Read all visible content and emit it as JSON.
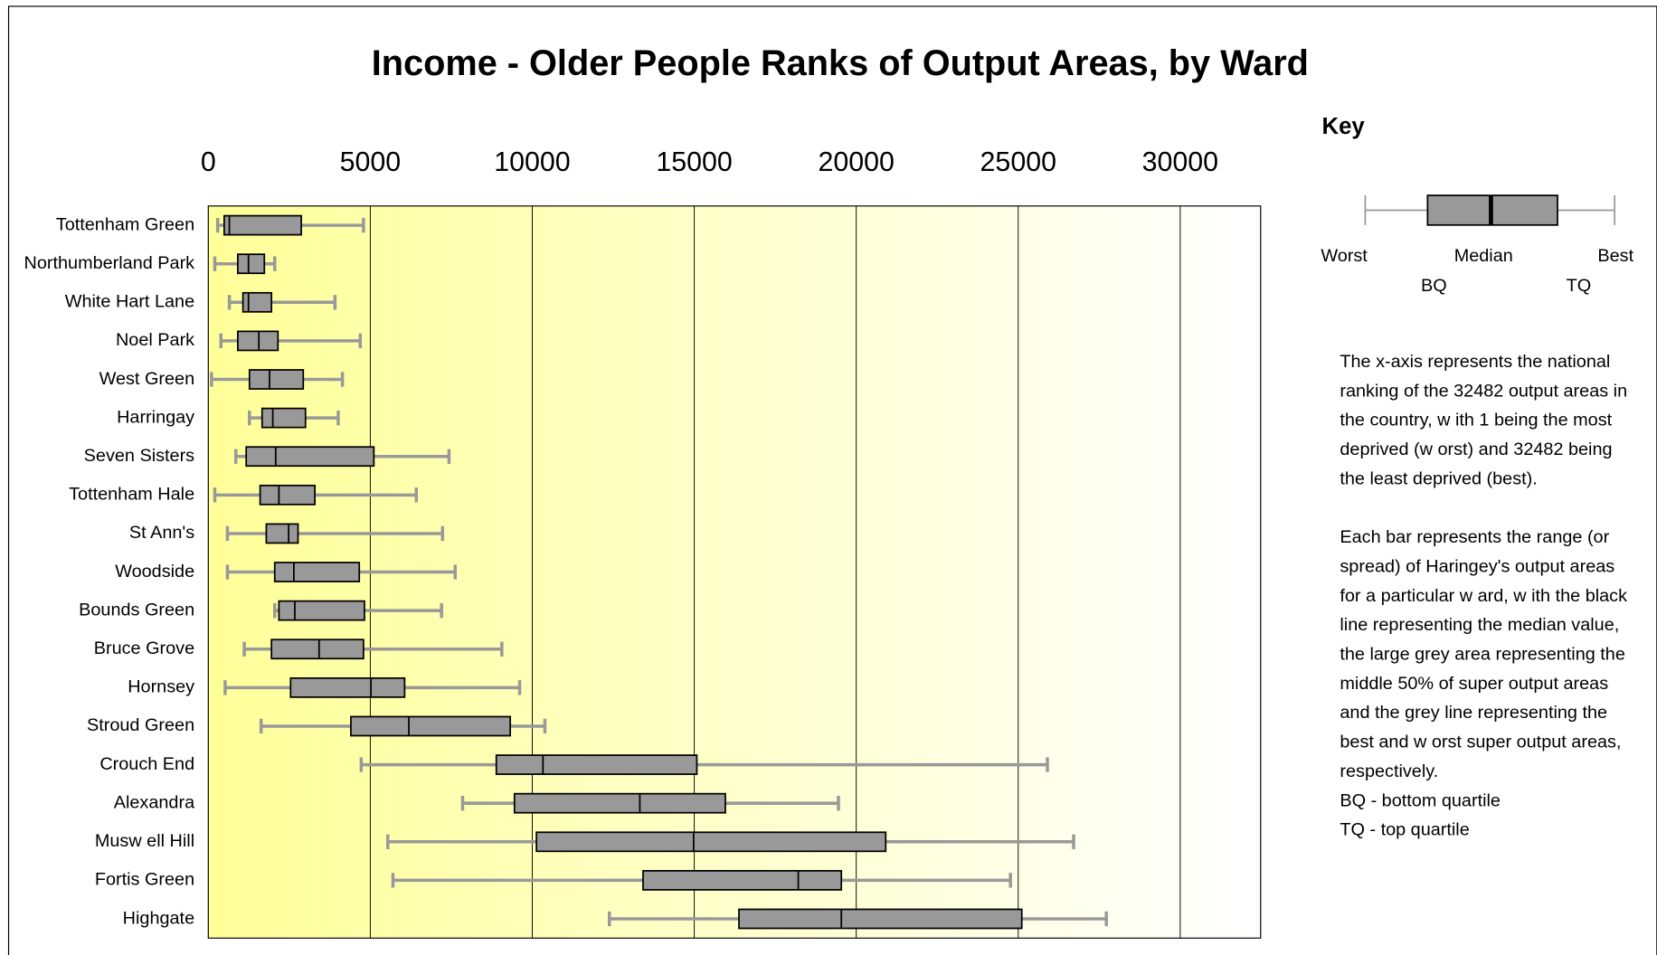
{
  "chart_data": {
    "type": "box",
    "title": "Income - Older People Ranks of Output Areas, by Ward",
    "categories": [
      "Tottenham Green",
      "Northumberland Park",
      "White Hart Lane",
      "Noel Park",
      "West Green",
      "Harringay",
      "Seven Sisters",
      "Tottenham Hale",
      "St Ann's",
      "Woodside",
      "Bounds Green",
      "Bruce Grove",
      "Hornsey",
      "Stroud Green",
      "Crouch End",
      "Alexandra",
      "Musw ell Hill",
      "Fortis Green",
      "Highgate"
    ],
    "boxes": [
      {
        "min": 290,
        "q1": 490,
        "median": 650,
        "q3": 2870,
        "max": 4790
      },
      {
        "min": 200,
        "q1": 910,
        "median": 1240,
        "q3": 1730,
        "max": 2050
      },
      {
        "min": 650,
        "q1": 1070,
        "median": 1240,
        "q3": 1950,
        "max": 3910
      },
      {
        "min": 390,
        "q1": 910,
        "median": 1560,
        "q3": 2150,
        "max": 4690
      },
      {
        "min": 100,
        "q1": 1270,
        "median": 1890,
        "q3": 2930,
        "max": 4140
      },
      {
        "min": 1270,
        "q1": 1660,
        "median": 1990,
        "q3": 3000,
        "max": 4010
      },
      {
        "min": 850,
        "q1": 1170,
        "median": 2080,
        "q3": 5110,
        "max": 7430
      },
      {
        "min": 200,
        "q1": 1600,
        "median": 2180,
        "q3": 3290,
        "max": 6420
      },
      {
        "min": 590,
        "q1": 1790,
        "median": 2480,
        "q3": 2770,
        "max": 7230
      },
      {
        "min": 590,
        "q1": 2050,
        "median": 2640,
        "q3": 4660,
        "max": 7620
      },
      {
        "min": 2050,
        "q1": 2180,
        "median": 2670,
        "q3": 4820,
        "max": 7200
      },
      {
        "min": 1110,
        "q1": 1950,
        "median": 3420,
        "q3": 4790,
        "max": 9060
      },
      {
        "min": 520,
        "q1": 2540,
        "median": 5020,
        "q3": 6060,
        "max": 9610
      },
      {
        "min": 1630,
        "q1": 4400,
        "median": 6190,
        "q3": 9320,
        "max": 10390
      },
      {
        "min": 4720,
        "q1": 8890,
        "median": 10330,
        "q3": 15080,
        "max": 25900
      },
      {
        "min": 7850,
        "q1": 9450,
        "median": 13320,
        "q3": 15960,
        "max": 19450
      },
      {
        "min": 5540,
        "q1": 10130,
        "median": 14980,
        "q3": 20910,
        "max": 26710
      },
      {
        "min": 5700,
        "q1": 13420,
        "median": 18210,
        "q3": 19540,
        "max": 24760
      },
      {
        "min": 12380,
        "q1": 16380,
        "median": 19540,
        "q3": 25110,
        "max": 27720
      }
    ],
    "xlim": [
      0,
      32482
    ],
    "xticks": [
      0,
      5000,
      10000,
      15000,
      20000,
      25000,
      30000
    ],
    "grid": true,
    "box_color": "#999999",
    "whisker_color": "#999999",
    "key": {
      "title": "Key",
      "worst": "Worst",
      "median": "Median",
      "best": "Best",
      "bq": "BQ",
      "tq": "TQ"
    },
    "notes": [
      "The x-axis represents the national",
      "ranking of the 32482 output areas in",
      "the country, w ith 1 being the most",
      "deprived (w orst) and 32482 being",
      "the least deprived (best).",
      "",
      "Each bar represents the range (or",
      "spread) of Haringey's output areas",
      "for a particular w ard, w ith the black",
      "line representing the median value,",
      "the large grey area representing the",
      "middle 50% of super output areas",
      "and the grey line representing the",
      "best and w orst super output areas,",
      "respectively.",
      "BQ - bottom quartile",
      "TQ - top quartile"
    ]
  }
}
